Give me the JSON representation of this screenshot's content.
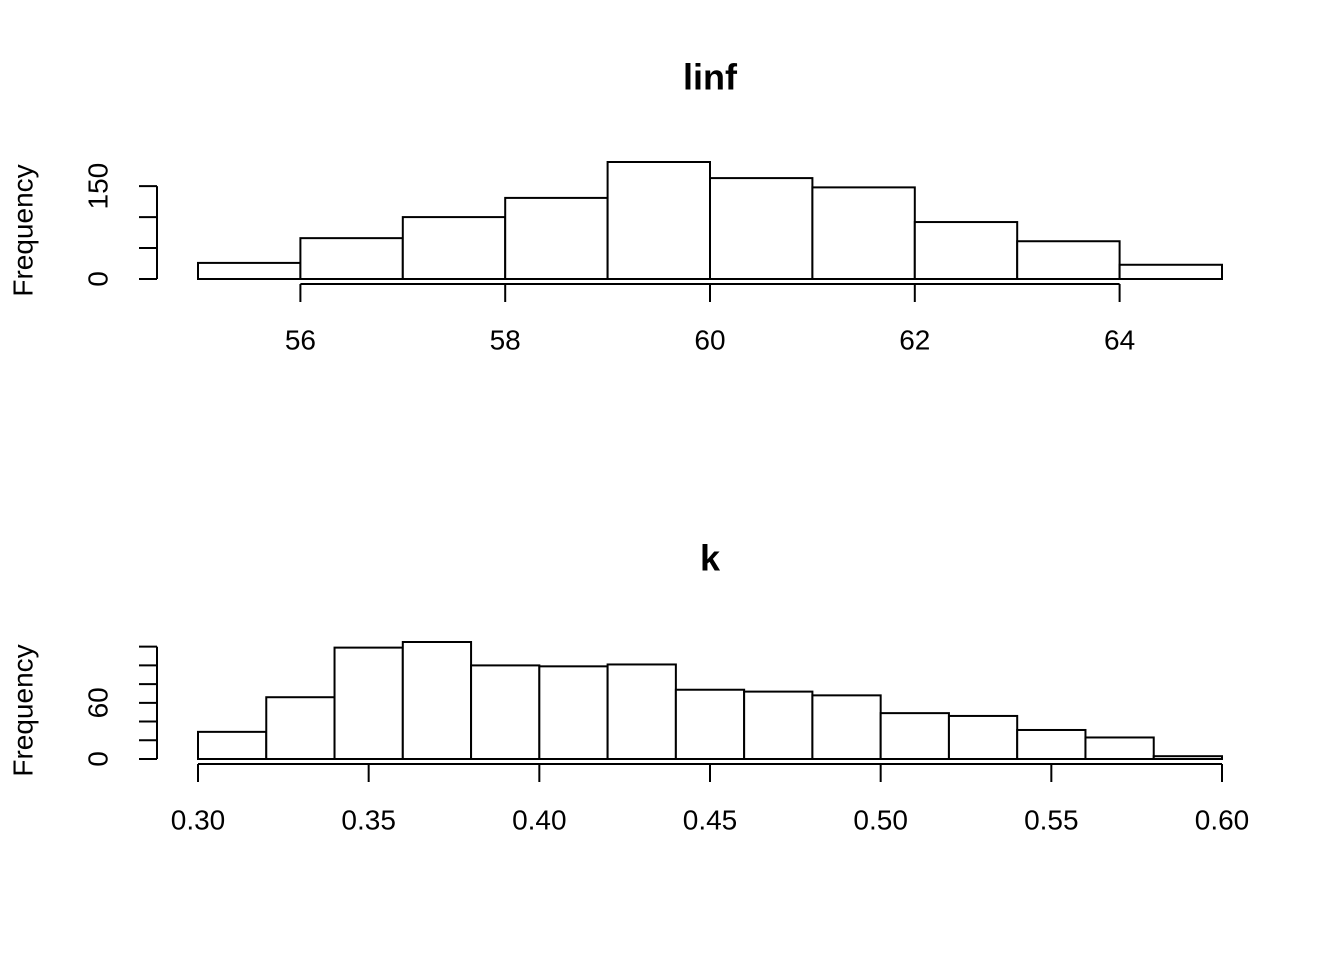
{
  "chart_data": [
    {
      "type": "histogram",
      "title": "linf",
      "ylabel": "Frequency",
      "bins": [
        55,
        56,
        57,
        58,
        59,
        60,
        61,
        62,
        63,
        64,
        65
      ],
      "values": [
        26,
        66,
        100,
        131,
        189,
        163,
        148,
        92,
        61,
        23
      ],
      "color": "#ffffff",
      "edgecolor": "#000000",
      "xlim": [
        55,
        65
      ],
      "xticks": [
        56,
        58,
        60,
        62,
        64
      ],
      "ylim": [
        0,
        189
      ],
      "yticks": [
        0,
        150
      ],
      "yticks_minor": [
        50,
        100
      ],
      "grid": false
    },
    {
      "type": "histogram",
      "title": "k",
      "ylabel": "Frequency",
      "bins": [
        0.3,
        0.32,
        0.34,
        0.36,
        0.38,
        0.4,
        0.42,
        0.44,
        0.46,
        0.48,
        0.5,
        0.52,
        0.54,
        0.56,
        0.58,
        0.6
      ],
      "values": [
        29,
        66,
        119,
        125,
        100,
        99,
        101,
        74,
        72,
        68,
        49,
        46,
        31,
        23,
        3
      ],
      "color": "#ffffff",
      "edgecolor": "#000000",
      "xlim": [
        0.3,
        0.6
      ],
      "xticks": [
        {
          "value": 0.3,
          "label": "0.30"
        },
        0.35,
        {
          "value": 0.4,
          "label": "0.40"
        },
        0.45,
        {
          "value": 0.5,
          "label": "0.50"
        },
        0.55,
        {
          "value": 0.6,
          "label": "0.60"
        }
      ],
      "ylim": [
        0,
        125
      ],
      "yticks": [
        0,
        60
      ],
      "yticks_minor": [
        20,
        40,
        80,
        100,
        120
      ],
      "grid": false
    }
  ]
}
